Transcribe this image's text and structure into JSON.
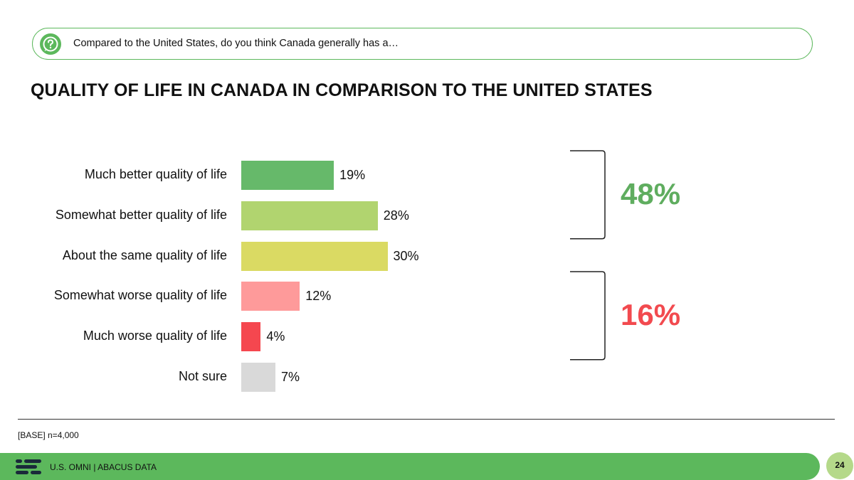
{
  "question": {
    "icon": "question-bubble-icon",
    "text": "Compared to the United States, do you think Canada generally has a…"
  },
  "chart_data": {
    "type": "bar",
    "orientation": "horizontal",
    "title": "QUALITY OF LIFE IN CANADA IN COMPARISON TO THE UNITED STATES",
    "categories": [
      "Much better quality of life",
      "Somewhat better quality of life",
      "About the same quality of life",
      "Somewhat worse quality of life",
      "Much worse quality of life",
      "Not sure"
    ],
    "values": [
      19,
      28,
      30,
      12,
      4,
      7
    ],
    "value_labels": [
      "19%",
      "28%",
      "30%",
      "12%",
      "4%",
      "7%"
    ],
    "colors": [
      "#66b96a",
      "#b1d46f",
      "#dada63",
      "#fe9a9a",
      "#f5474f",
      "#d9d9d9"
    ],
    "xlim": [
      0,
      30
    ],
    "summaries": [
      {
        "label": "48%",
        "color": "#5fad5f",
        "covers": [
          0,
          1
        ]
      },
      {
        "label": "16%",
        "color": "#f24a4f",
        "covers": [
          3,
          4
        ]
      }
    ],
    "grid": false,
    "legend": "none"
  },
  "base_note": "[BASE] n=4,000",
  "footer": {
    "logo": "abacus-logo-icon",
    "text": "U.S. OMNI | ABACUS DATA",
    "page_number": "24",
    "bar_color": "#5cb85c"
  }
}
